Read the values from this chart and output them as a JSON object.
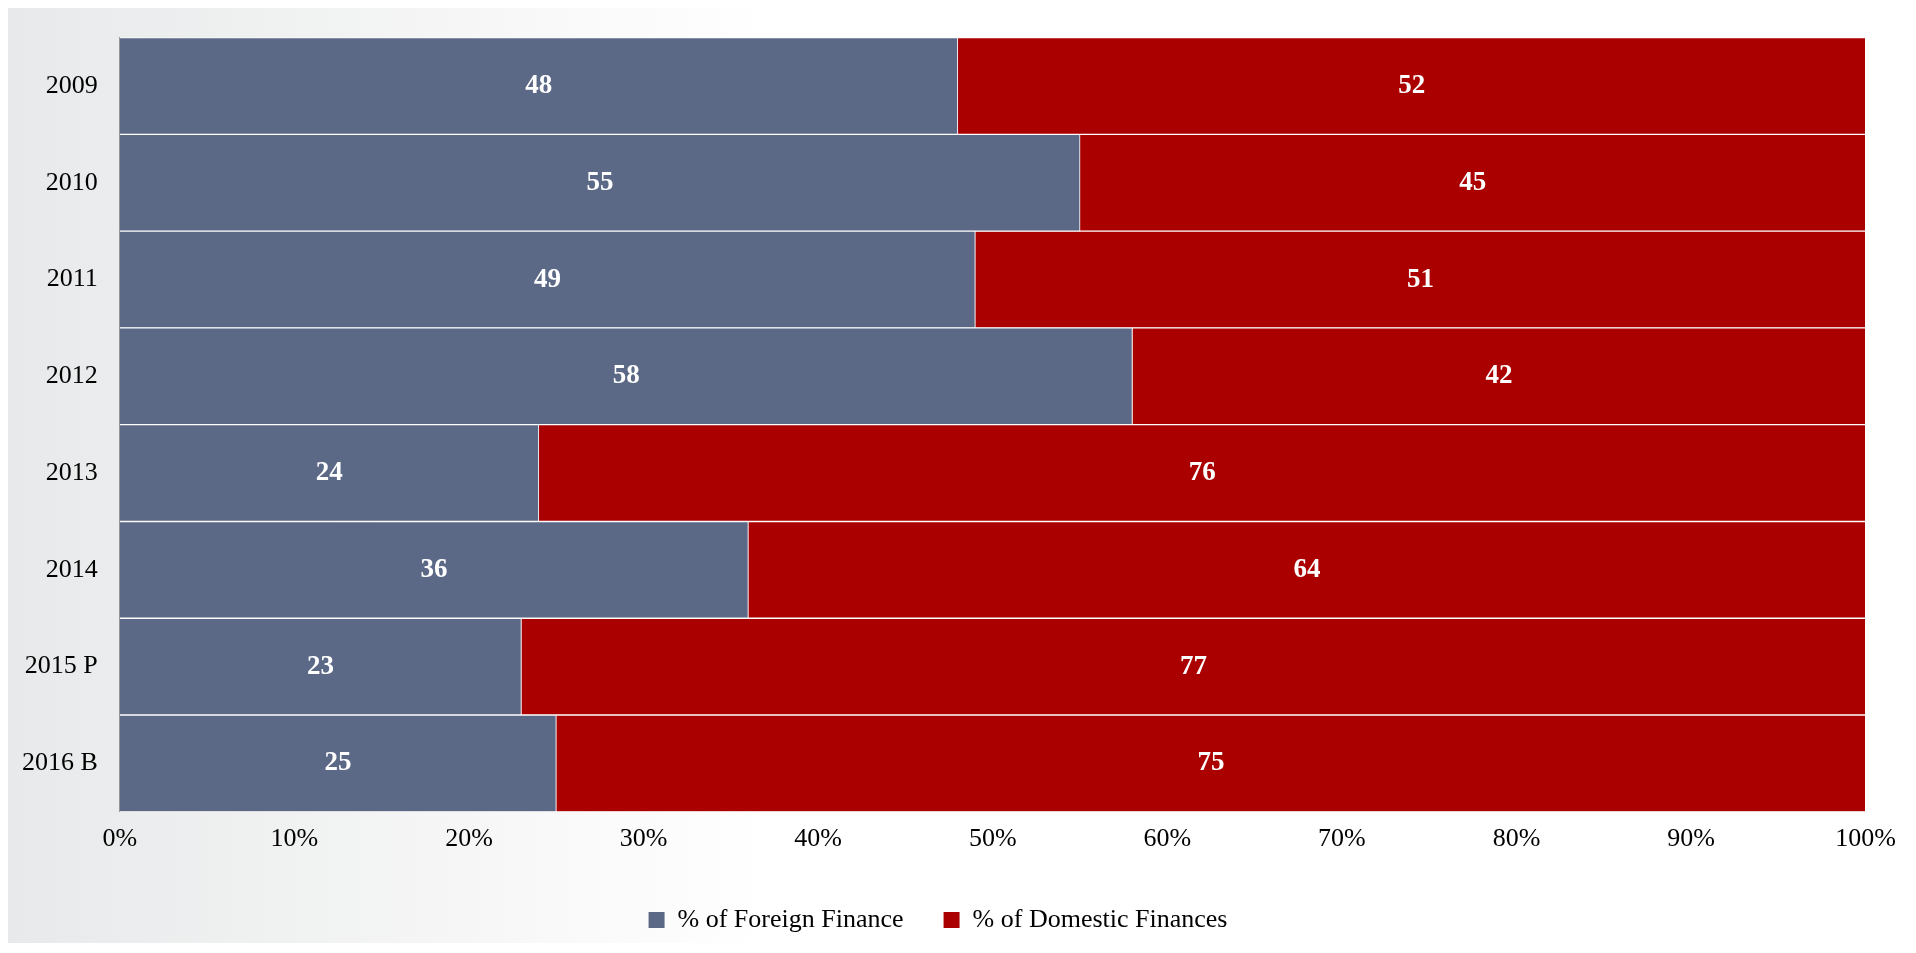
{
  "chart_data": {
    "type": "bar",
    "orientation": "horizontal",
    "stacked": true,
    "categories": [
      "2009",
      "2010",
      "2011",
      "2012",
      "2013",
      "2014",
      "2015 P",
      "2016 B"
    ],
    "series": [
      {
        "name": "% of Foreign Finance",
        "color": "#5b6986",
        "values": [
          48,
          55,
          49,
          58,
          24,
          36,
          23,
          25
        ]
      },
      {
        "name": "% of Domestic Finances",
        "color": "#aa0000",
        "values": [
          52,
          45,
          51,
          42,
          76,
          64,
          77,
          75
        ]
      }
    ],
    "xlim": [
      0,
      100
    ],
    "xticks": [
      {
        "value": 0,
        "label": "0%"
      },
      {
        "value": 10,
        "label": "10%"
      },
      {
        "value": 20,
        "label": "20%"
      },
      {
        "value": 30,
        "label": "30%"
      },
      {
        "value": 40,
        "label": "40%"
      },
      {
        "value": 50,
        "label": "50%"
      },
      {
        "value": 60,
        "label": "60%"
      },
      {
        "value": 70,
        "label": "70%"
      },
      {
        "value": 80,
        "label": "80%"
      },
      {
        "value": 90,
        "label": "90%"
      },
      {
        "value": 100,
        "label": "100%"
      }
    ],
    "data_labels": true,
    "grid": false,
    "legend": "bottom"
  }
}
